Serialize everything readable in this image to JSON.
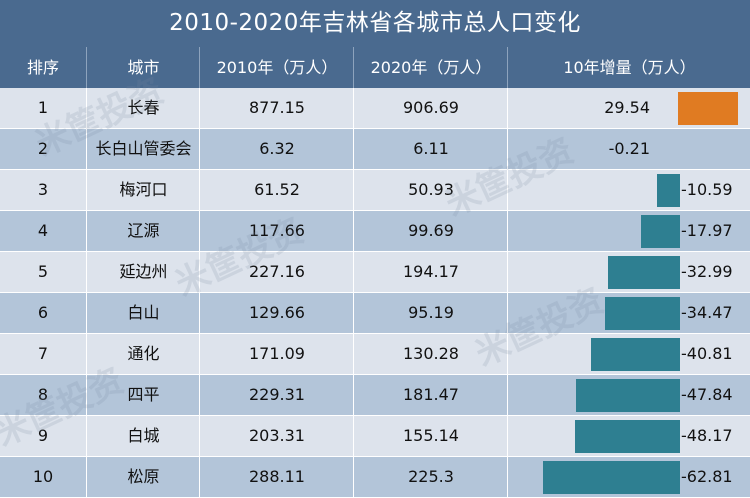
{
  "title": "2010-2020年吉林省各城市总人口变化",
  "headers": [
    "排序",
    "城市",
    "2010年（万人）",
    "2020年（万人）",
    "10年增量（万人）"
  ],
  "colors": {
    "header_bg": "#4a6a8f",
    "positive_bar": "#e07b22",
    "negative_bar": "#2e7f91"
  },
  "rows": [
    {
      "rank": "1",
      "city": "长春",
      "pop2010": "877.15",
      "pop2020": "906.69",
      "change": "29.54",
      "change_value": 29.54
    },
    {
      "rank": "2",
      "city": "长白山管委会",
      "pop2010": "6.32",
      "pop2020": "6.11",
      "change": "-0.21",
      "change_value": -0.21
    },
    {
      "rank": "3",
      "city": "梅河口",
      "pop2010": "61.52",
      "pop2020": "50.93",
      "change": "-10.59",
      "change_value": -10.59
    },
    {
      "rank": "4",
      "city": "辽源",
      "pop2010": "117.66",
      "pop2020": "99.69",
      "change": "-17.97",
      "change_value": -17.97
    },
    {
      "rank": "5",
      "city": "延边州",
      "pop2010": "227.16",
      "pop2020": "194.17",
      "change": "-32.99",
      "change_value": -32.99
    },
    {
      "rank": "6",
      "city": "白山",
      "pop2010": "129.66",
      "pop2020": "95.19",
      "change": "-34.47",
      "change_value": -34.47
    },
    {
      "rank": "7",
      "city": "通化",
      "pop2010": "171.09",
      "pop2020": "130.28",
      "change": "-40.81",
      "change_value": -40.81
    },
    {
      "rank": "8",
      "city": "四平",
      "pop2010": "229.31",
      "pop2020": "181.47",
      "change": "-47.84",
      "change_value": -47.84
    },
    {
      "rank": "9",
      "city": "白城",
      "pop2010": "203.31",
      "pop2020": "155.14",
      "change": "-48.17",
      "change_value": -48.17
    },
    {
      "rank": "10",
      "city": "松原",
      "pop2010": "288.11",
      "pop2020": "225.3",
      "change": "-62.81",
      "change_value": -62.81
    }
  ],
  "watermark": "米筐投资",
  "chart_data": {
    "type": "table",
    "title": "2010-2020年吉林省各城市总人口变化",
    "columns": [
      "排序",
      "城市",
      "2010年（万人）",
      "2020年（万人）",
      "10年增量（万人）"
    ],
    "categories": [
      "长春",
      "长白山管委会",
      "梅河口",
      "辽源",
      "延边州",
      "白山",
      "通化",
      "四平",
      "白城",
      "松原"
    ],
    "series": [
      {
        "name": "2010年（万人）",
        "values": [
          877.15,
          6.32,
          61.52,
          117.66,
          227.16,
          129.66,
          171.09,
          229.31,
          203.31,
          288.11
        ]
      },
      {
        "name": "2020年（万人）",
        "values": [
          906.69,
          6.11,
          50.93,
          99.69,
          194.17,
          95.19,
          130.28,
          181.47,
          155.14,
          225.3
        ]
      },
      {
        "name": "10年增量（万人）",
        "values": [
          29.54,
          -0.21,
          -10.59,
          -17.97,
          -32.99,
          -34.47,
          -40.81,
          -47.84,
          -48.17,
          -62.81
        ]
      }
    ]
  }
}
